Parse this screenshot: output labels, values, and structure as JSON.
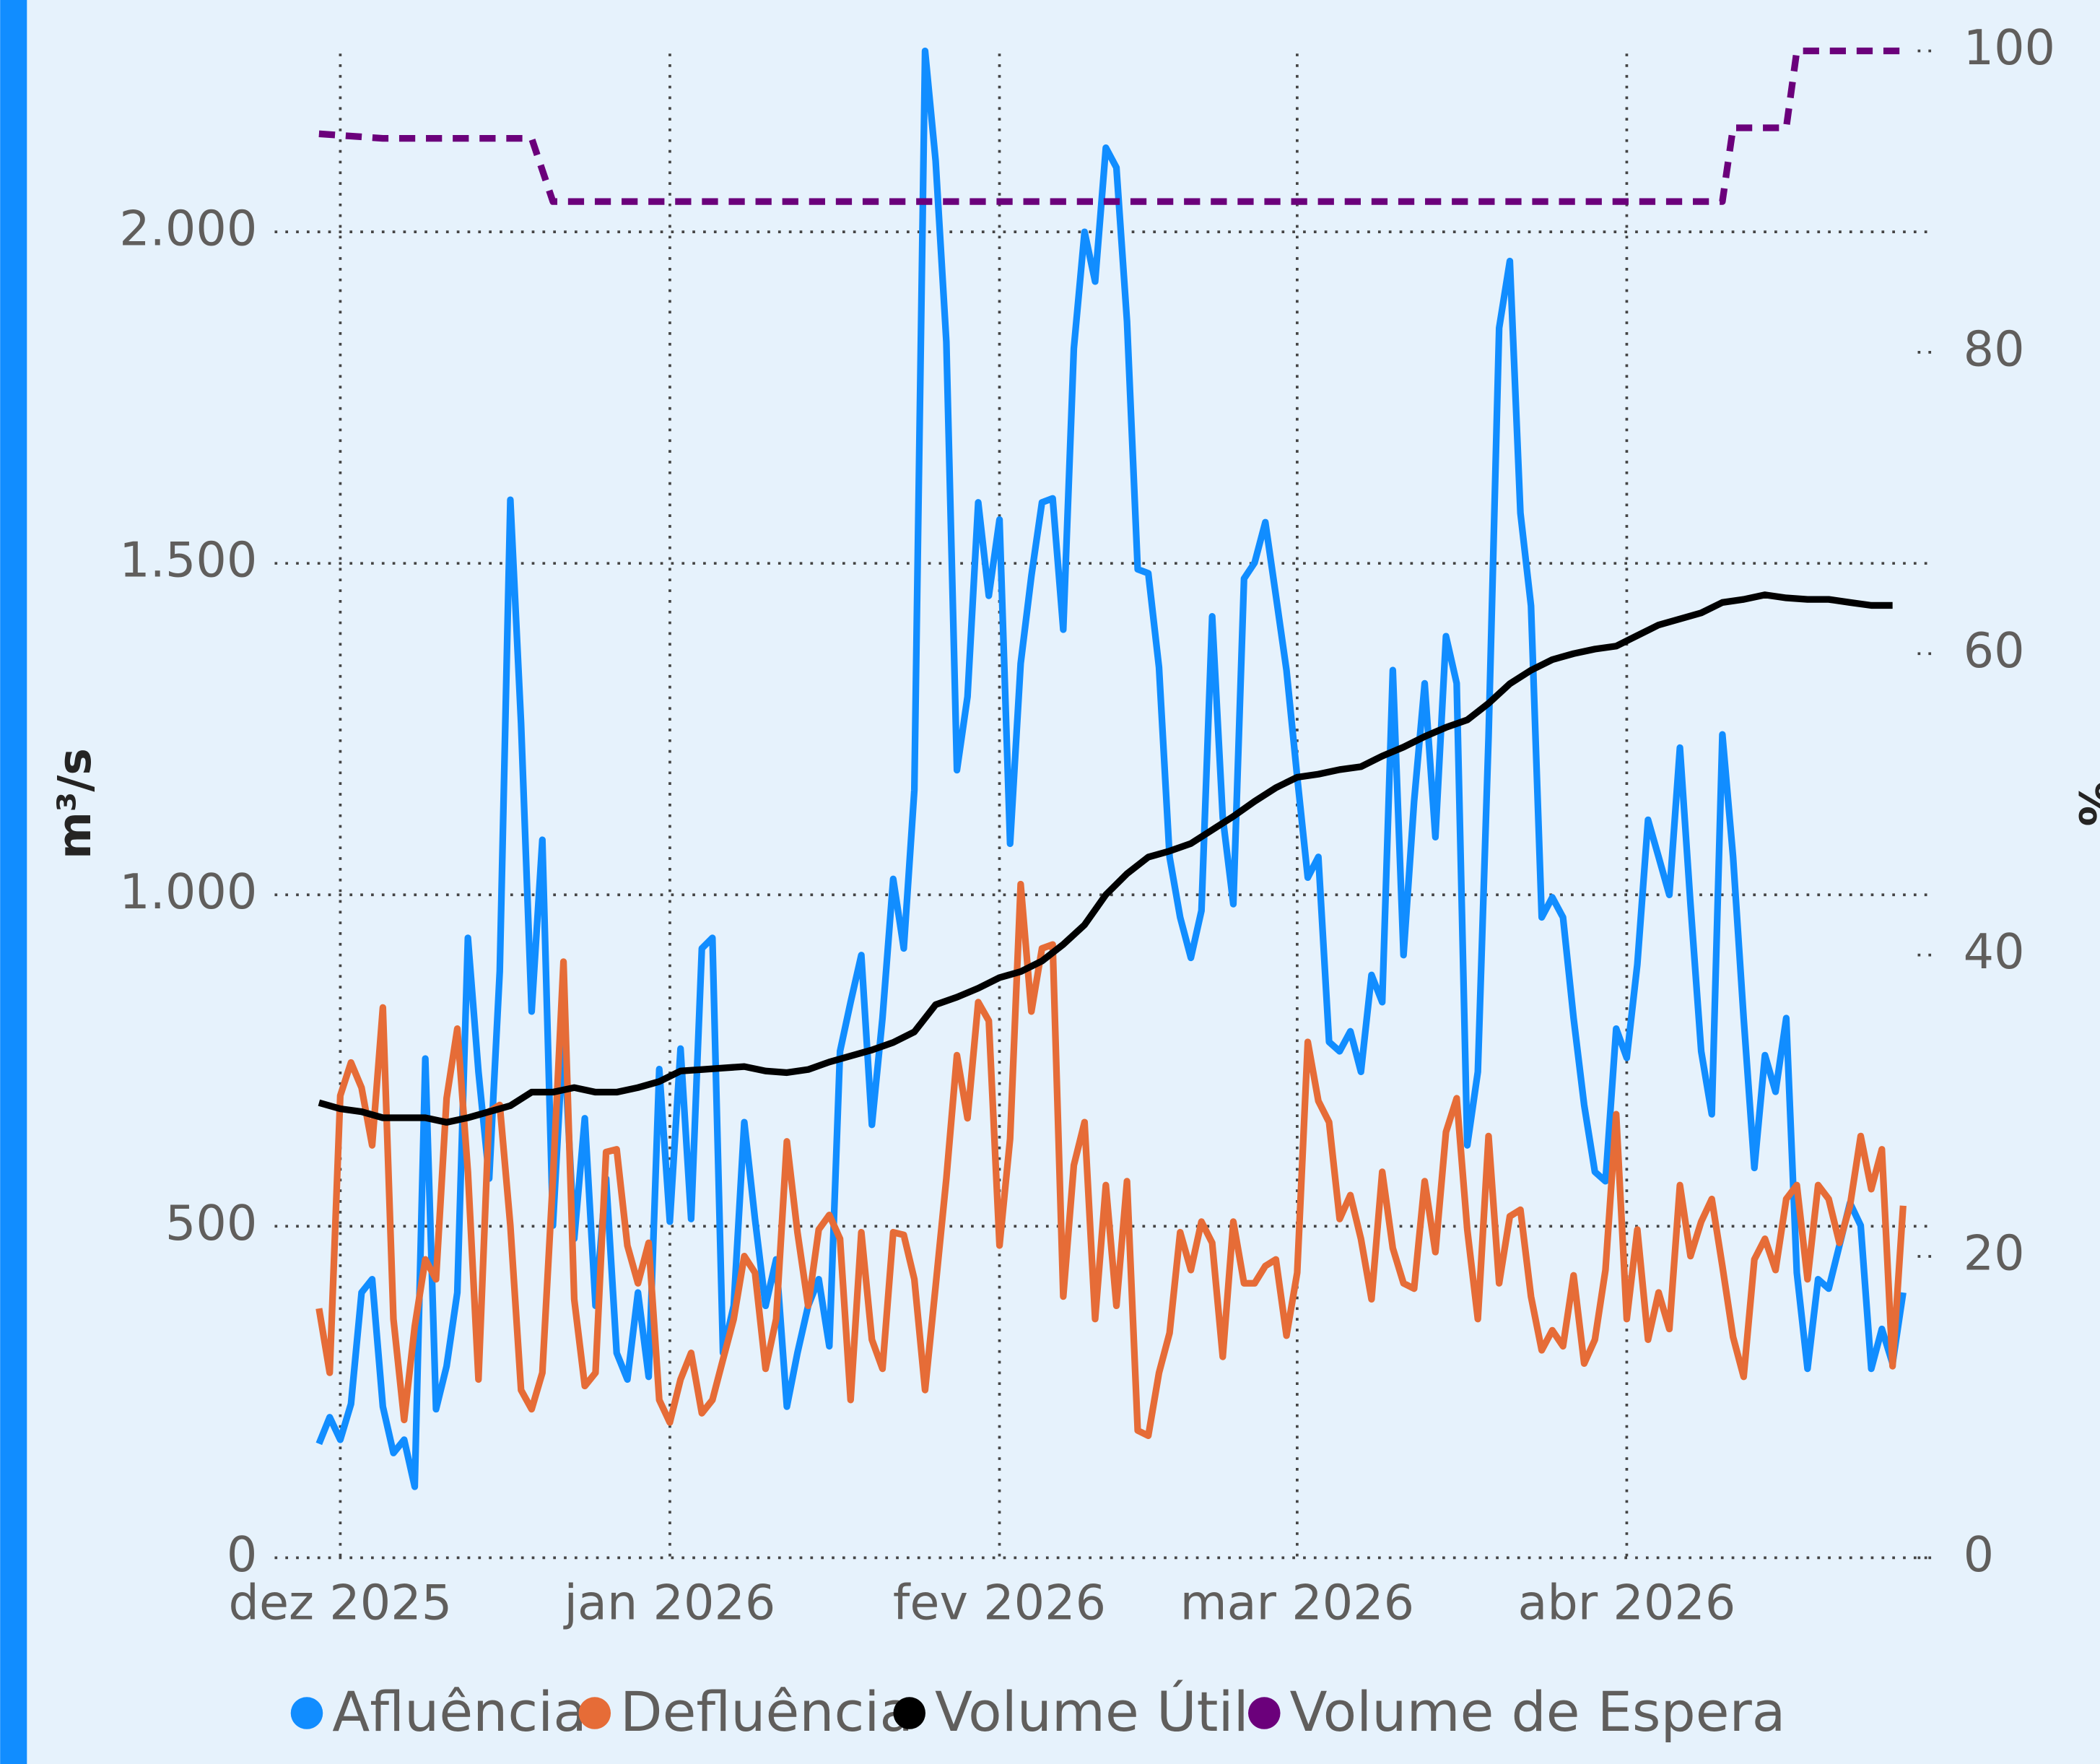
{
  "chart_data": {
    "type": "line",
    "y_label": "m³/s",
    "y2_label": "%",
    "x": [
      -2,
      -1,
      0,
      1,
      2,
      3,
      4,
      5,
      6,
      7,
      8,
      9,
      10,
      11,
      12,
      13,
      14,
      15,
      16,
      17,
      18,
      19,
      20,
      21,
      22,
      23,
      24,
      25,
      26,
      27,
      28,
      29,
      30,
      31,
      32,
      33,
      34,
      35,
      36,
      37,
      38,
      39,
      40,
      41,
      42,
      43,
      44,
      45,
      46,
      47,
      48,
      49,
      50,
      51,
      52,
      53,
      54,
      55,
      56,
      57,
      58,
      59,
      60,
      61,
      62,
      63,
      64,
      65,
      66,
      67,
      68,
      69,
      70,
      71,
      72,
      73,
      74,
      75,
      76,
      77,
      78,
      79,
      80,
      81,
      82,
      83,
      84,
      85,
      86,
      87,
      88,
      89,
      90,
      91,
      92,
      93,
      94,
      95,
      96,
      97,
      98,
      99,
      100,
      101,
      102,
      103,
      104,
      105,
      106,
      107,
      108,
      109,
      110,
      111,
      112,
      113,
      114,
      115,
      116,
      117,
      118,
      119,
      120,
      121,
      122,
      123,
      124,
      125,
      126,
      127,
      128,
      129,
      130,
      131,
      132,
      133,
      134,
      135,
      136,
      137,
      138,
      139,
      140,
      141,
      142,
      143,
      144,
      145,
      146,
      147
    ],
    "xlim": [
      -8,
      149
    ],
    "xticks": [
      {
        "value": 0,
        "label": "dez 2025"
      },
      {
        "value": 31,
        "label": "jan 2026"
      },
      {
        "value": 62,
        "label": "fev 2026"
      },
      {
        "value": 90,
        "label": "mar 2026"
      },
      {
        "value": 121,
        "label": "abr 2026"
      }
    ],
    "ylim": [
      0,
      2273
    ],
    "yticks": [
      0,
      500,
      {
        "value": 1000,
        "label": "1.000"
      },
      {
        "value": 1500,
        "label": "1.500"
      },
      {
        "value": 2000,
        "label": "2.000"
      }
    ],
    "y2lim": [
      0,
      100
    ],
    "y2ticks": [
      0,
      20,
      40,
      60,
      80,
      100
    ],
    "grid": true,
    "legend": "bottom",
    "series": [
      {
        "name": "Afluência",
        "color": "#118dff",
        "values": [
          172,
          212,
          178,
          232,
          400,
          420,
          228,
          158,
          178,
          107,
          753,
          224,
          289,
          400,
          935,
          733,
          572,
          885,
          1596,
          1259,
          824,
          1083,
          501,
          794,
          481,
          663,
          380,
          572,
          309,
          269,
          400,
          273,
          737,
          507,
          768,
          511,
          919,
          935,
          309,
          380,
          657,
          511,
          380,
          450,
          228,
          309,
          380,
          420,
          319,
          764,
          838,
          909,
          653,
          814,
          1024,
          919,
          1158,
          2273,
          2107,
          1834,
          1188,
          1299,
          1592,
          1451,
          1566,
          1077,
          1349,
          1481,
          1592,
          1598,
          1400,
          1824,
          2000,
          1925,
          2127,
          2097,
          1865,
          1491,
          1485,
          1343,
          1057,
          966,
          905,
          976,
          1420,
          1117,
          986,
          1477,
          1501,
          1562,
          1451,
          1339,
          1178,
          1026,
          1057,
          778,
          764,
          794,
          733,
          879,
          838,
          1339,
          909,
          1141,
          1319,
          1087,
          1390,
          1319,
          622,
          733,
          1238,
          1855,
          1956,
          1576,
          1436,
          966,
          996,
          966,
          814,
          683,
          582,
          568,
          798,
          754,
          895,
          1113,
          1057,
          1000,
          1222,
          986,
          764,
          669,
          1242,
          1057,
          814,
          588,
          758,
          703,
          814,
          430,
          285,
          420,
          406,
          471,
          535,
          501,
          285,
          345,
          293,
          400
        ]
      },
      {
        "name": "Defluência",
        "color": "#e66c37",
        "values": [
          376,
          279,
          697,
          747,
          709,
          622,
          830,
          360,
          208,
          349,
          450,
          420,
          693,
          798,
          582,
          269,
          673,
          683,
          501,
          253,
          224,
          279,
          572,
          899,
          390,
          259,
          279,
          612,
          616,
          471,
          414,
          475,
          238,
          204,
          269,
          309,
          218,
          238,
          299,
          360,
          455,
          430,
          285,
          360,
          628,
          491,
          380,
          495,
          517,
          481,
          238,
          491,
          329,
          285,
          491,
          487,
          420,
          253,
          410,
          572,
          758,
          663,
          838,
          810,
          471,
          632,
          1016,
          824,
          919,
          925,
          394,
          592,
          657,
          360,
          562,
          380,
          568,
          192,
          184,
          279,
          339,
          491,
          434,
          507,
          475,
          303,
          507,
          414,
          414,
          440,
          450,
          335,
          430,
          778,
          689,
          657,
          511,
          547,
          481,
          390,
          582,
          467,
          414,
          406,
          568,
          461,
          642,
          693,
          495,
          360,
          636,
          414,
          515,
          525,
          394,
          313,
          343,
          319,
          426,
          293,
          329,
          434,
          669,
          360,
          495,
          329,
          400,
          345,
          562,
          455,
          507,
          541,
          440,
          333,
          273,
          450,
          481,
          434,
          541,
          562,
          420,
          562,
          541,
          475,
          531,
          636,
          556,
          616,
          289,
          531
        ]
      },
      {
        "name": "Volume Útil",
        "color": "#000000",
        "axis": "y2",
        "x": [
          -2,
          0,
          2,
          4,
          6,
          8,
          10,
          12,
          14,
          16,
          18,
          20,
          22,
          24,
          26,
          28,
          30,
          32,
          34,
          36,
          38,
          40,
          42,
          44,
          46,
          48,
          50,
          52,
          54,
          56,
          58,
          60,
          62,
          64,
          66,
          68,
          70,
          72,
          74,
          76,
          78,
          80,
          82,
          84,
          86,
          88,
          90,
          92,
          94,
          96,
          98,
          100,
          102,
          104,
          106,
          108,
          110,
          112,
          114,
          116,
          118,
          120,
          122,
          124,
          126,
          128,
          130,
          132,
          134,
          136,
          138,
          140,
          142,
          144,
          146
        ],
        "values": [
          30.2,
          29.8,
          29.6,
          29.2,
          29.2,
          29.2,
          28.9,
          29.2,
          29.6,
          30.0,
          30.9,
          30.9,
          31.2,
          30.9,
          30.9,
          31.2,
          31.6,
          32.3,
          32.4,
          32.5,
          32.6,
          32.3,
          32.2,
          32.4,
          32.9,
          33.3,
          33.7,
          34.2,
          34.9,
          36.7,
          37.2,
          37.8,
          38.5,
          38.9,
          39.6,
          40.7,
          42.0,
          44.0,
          45.4,
          46.5,
          46.9,
          47.4,
          48.3,
          49.2,
          50.2,
          51.1,
          51.8,
          52.0,
          52.3,
          52.5,
          53.2,
          53.8,
          54.5,
          55.1,
          55.6,
          56.7,
          58.0,
          58.9,
          59.6,
          60.0,
          60.3,
          60.5,
          61.2,
          61.9,
          62.3,
          62.7,
          63.4,
          63.6,
          63.9,
          63.7,
          63.6,
          63.6,
          63.4,
          63.2,
          63.2
        ]
      },
      {
        "name": "Volume de Espera",
        "color": "#6b007b",
        "axis": "y2",
        "dash": true,
        "x": [
          -2,
          4,
          18,
          20,
          130,
          131,
          136,
          137,
          147
        ],
        "values": [
          94.5,
          94.2,
          94.2,
          90,
          90,
          94.9,
          94.9,
          100,
          100
        ]
      }
    ]
  }
}
